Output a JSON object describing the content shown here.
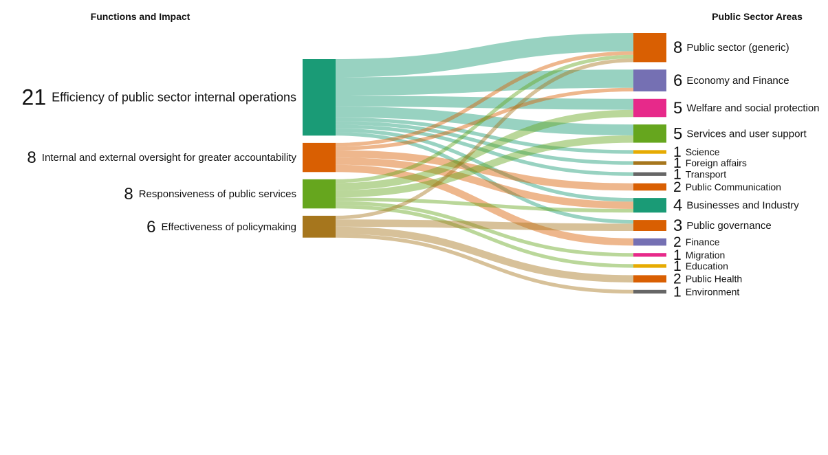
{
  "headers": {
    "left": "Functions and Impact",
    "right": "Public Sector Areas"
  },
  "sources": [
    {
      "id": "s1",
      "value": "21",
      "label": "Efficiency of public sector internal operations",
      "color": "#1a9b76"
    },
    {
      "id": "s2",
      "value": "8",
      "label": "Internal and external oversight for greater accountability",
      "color": "#d95f02"
    },
    {
      "id": "s3",
      "value": "8",
      "label": "Responsiveness of public services",
      "color": "#66a61e"
    },
    {
      "id": "s4",
      "value": "6",
      "label": "Effectiveness of policymaking",
      "color": "#a6761d"
    }
  ],
  "targets": [
    {
      "id": "t1",
      "value": "8",
      "label": "Public sector (generic)",
      "color": "#d95f02"
    },
    {
      "id": "t2",
      "value": "6",
      "label": "Economy and Finance",
      "color": "#7570b3"
    },
    {
      "id": "t3",
      "value": "5",
      "label": "Welfare and social protection",
      "color": "#e7298a"
    },
    {
      "id": "t4",
      "value": "5",
      "label": "Services and user support",
      "color": "#66a61e"
    },
    {
      "id": "t5",
      "value": "1",
      "label": "Science",
      "color": "#e6ab02"
    },
    {
      "id": "t6",
      "value": "1",
      "label": "Foreign affairs",
      "color": "#a6761d"
    },
    {
      "id": "t7",
      "value": "1",
      "label": "Transport",
      "color": "#666666"
    },
    {
      "id": "t8",
      "value": "2",
      "label": "Public Communication",
      "color": "#d95f02"
    },
    {
      "id": "t9",
      "value": "4",
      "label": "Businesses and Industry",
      "color": "#1a9b76"
    },
    {
      "id": "t10",
      "value": "3",
      "label": "Public governance",
      "color": "#d95f02"
    },
    {
      "id": "t11",
      "value": "2",
      "label": "Finance",
      "color": "#7570b3"
    },
    {
      "id": "t12",
      "value": "1",
      "label": "Migration",
      "color": "#e7298a"
    },
    {
      "id": "t13",
      "value": "1",
      "label": "Education",
      "color": "#e6ab02"
    },
    {
      "id": "t14",
      "value": "2",
      "label": "Public Health",
      "color": "#d95f02"
    },
    {
      "id": "t15",
      "value": "1",
      "label": "Environment",
      "color": "#666666"
    }
  ],
  "links": [
    {
      "source": "s1",
      "target": "t1",
      "value": 5
    },
    {
      "source": "s1",
      "target": "t2",
      "value": 5
    },
    {
      "source": "s1",
      "target": "t3",
      "value": 3
    },
    {
      "source": "s1",
      "target": "t4",
      "value": 3
    },
    {
      "source": "s1",
      "target": "t5",
      "value": 1
    },
    {
      "source": "s1",
      "target": "t6",
      "value": 1
    },
    {
      "source": "s1",
      "target": "t7",
      "value": 1
    },
    {
      "source": "s1",
      "target": "t9",
      "value": 1
    },
    {
      "source": "s1",
      "target": "t10",
      "value": 1
    },
    {
      "source": "s2",
      "target": "t1",
      "value": 1
    },
    {
      "source": "s2",
      "target": "t2",
      "value": 1
    },
    {
      "source": "s2",
      "target": "t8",
      "value": 2
    },
    {
      "source": "s2",
      "target": "t9",
      "value": 2
    },
    {
      "source": "s2",
      "target": "t11",
      "value": 2
    },
    {
      "source": "s3",
      "target": "t1",
      "value": 1
    },
    {
      "source": "s3",
      "target": "t3",
      "value": 2
    },
    {
      "source": "s3",
      "target": "t4",
      "value": 2
    },
    {
      "source": "s3",
      "target": "t9",
      "value": 1
    },
    {
      "source": "s3",
      "target": "t12",
      "value": 1
    },
    {
      "source": "s3",
      "target": "t13",
      "value": 1
    },
    {
      "source": "s4",
      "target": "t1",
      "value": 1
    },
    {
      "source": "s4",
      "target": "t10",
      "value": 2
    },
    {
      "source": "s4",
      "target": "t14",
      "value": 2
    },
    {
      "source": "s4",
      "target": "t15",
      "value": 1
    }
  ]
}
